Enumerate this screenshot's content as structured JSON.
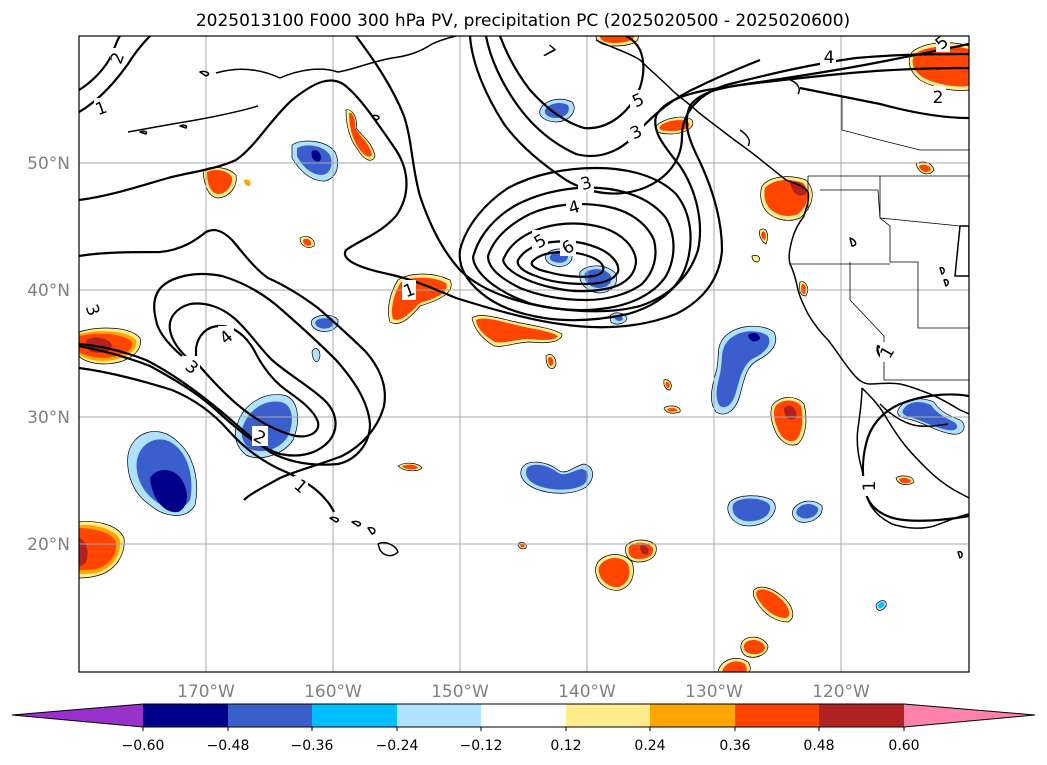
{
  "title": "2025013100 F000 300 hPa PV, precipitation PC (2025020500 - 2025020600)",
  "latitude_labels": [
    "20°N",
    "30°N",
    "40°N",
    "50°N"
  ],
  "longitude_labels": [
    "170°W",
    "160°W",
    "150°W",
    "140°W",
    "130°W",
    "120°W"
  ],
  "contour_labels": [
    "1",
    "2",
    "3",
    "4",
    "5",
    "6",
    "7"
  ],
  "colorbar": {
    "colors": [
      "#9932cc",
      "#00008b",
      "#3a5fcd",
      "#00bfff",
      "#b0e2ff",
      "#ffffff",
      "#ffec8b",
      "#ffa500",
      "#ff4500",
      "#b22222",
      "#ff82ab"
    ],
    "tick_labels": [
      "−0.60",
      "−0.48",
      "−0.36",
      "−0.24",
      "−0.12",
      "0.12",
      "0.24",
      "0.36",
      "0.48",
      "0.60"
    ]
  },
  "shading_colors": {
    "negative": [
      "#b0e2ff",
      "#00bfff",
      "#3a5fcd",
      "#00008b"
    ],
    "positive": [
      "#ffec8b",
      "#ffa500",
      "#ff4500",
      "#b22222"
    ]
  }
}
